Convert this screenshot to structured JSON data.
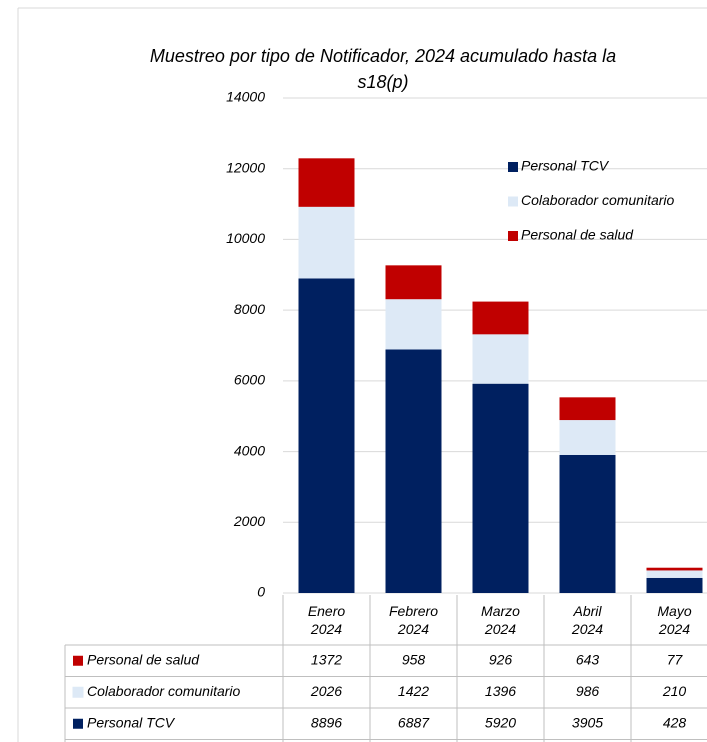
{
  "chart_data": {
    "type": "bar",
    "stacked": true,
    "title": "Muestreo por tipo de Notificador, 2024 acumulado hasta la s18(p)",
    "categories": [
      "Enero 2024",
      "Febrero 2024",
      "Marzo 2024",
      "Abril 2024",
      "Mayo 2024"
    ],
    "series": [
      {
        "name": "Personal TCV",
        "color": "#002060",
        "values": [
          8896,
          6887,
          5920,
          3905,
          428
        ]
      },
      {
        "name": "Colaborador comunitario",
        "color": "#dde9f6",
        "values": [
          2026,
          1422,
          1396,
          986,
          210
        ]
      },
      {
        "name": "Personal de salud",
        "color": "#c00000",
        "values": [
          1372,
          958,
          926,
          643,
          77
        ]
      }
    ],
    "ylim": [
      0,
      14000
    ],
    "yticks": [
      0,
      2000,
      4000,
      6000,
      8000,
      10000,
      12000,
      14000
    ],
    "grid": true,
    "legend": "upper right",
    "data_table": true
  }
}
